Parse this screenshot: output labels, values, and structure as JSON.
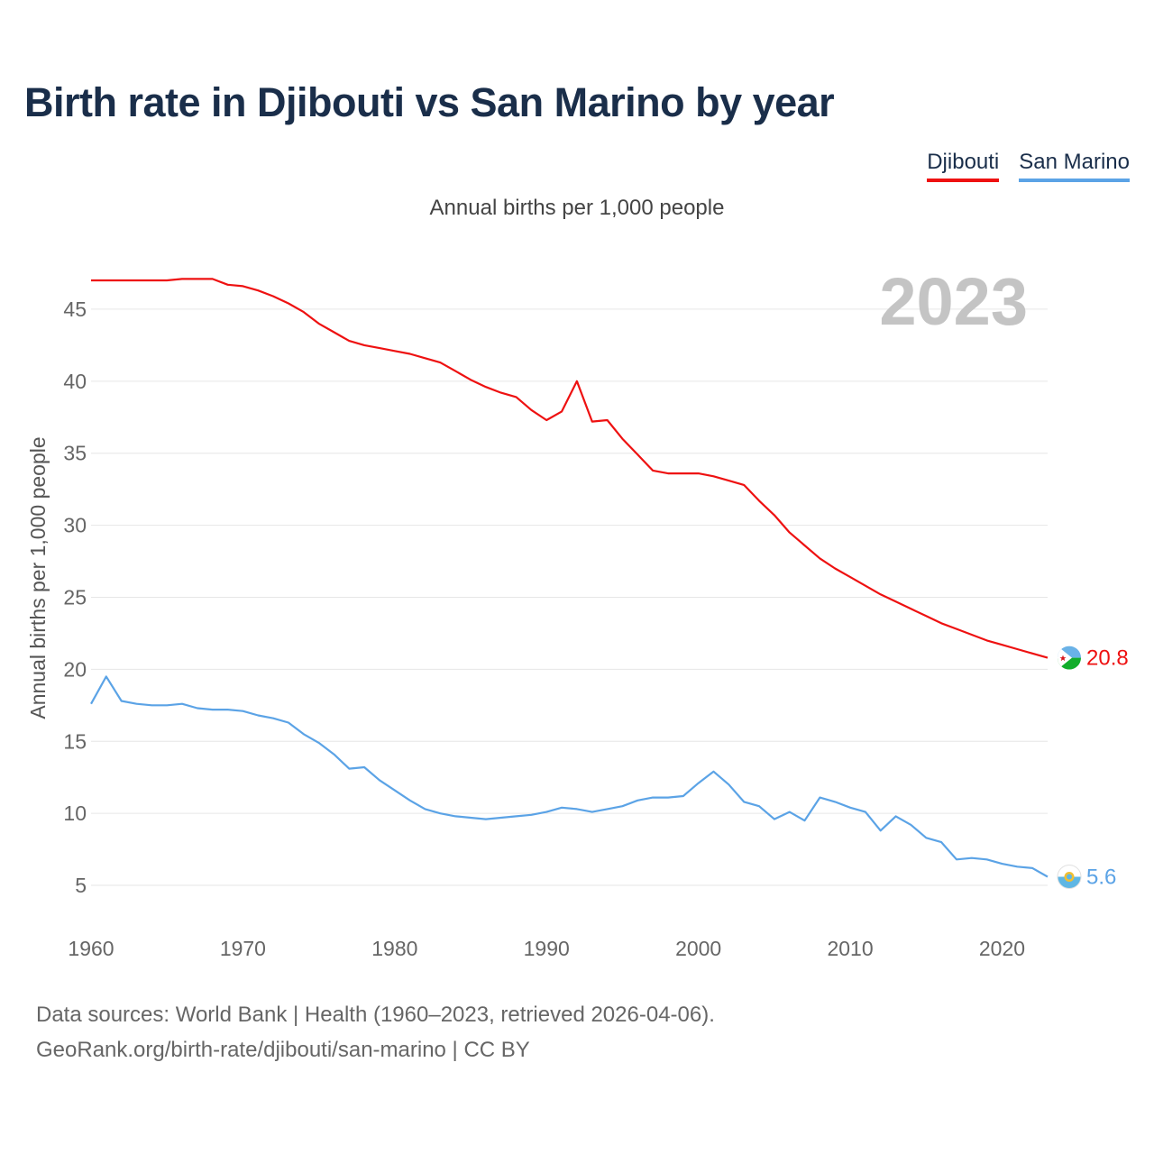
{
  "colors": {
    "djibouti": "#ee1111",
    "san_marino": "#5ba3e6",
    "grid": "#e6e6e6",
    "year_watermark": "#c4c4c4"
  },
  "chart_data": {
    "type": "line",
    "title": "Birth rate in Djibouti vs San Marino by year",
    "subtitle": "Annual births per 1,000 people",
    "ylabel": "Annual births per 1,000 people",
    "xlabel": "",
    "year_label": "2023",
    "xlim": [
      1960,
      2023
    ],
    "ylim": [
      2.5,
      48
    ],
    "x_ticks": [
      1960,
      1970,
      1980,
      1990,
      2000,
      2010,
      2020
    ],
    "y_ticks": [
      5,
      10,
      15,
      20,
      25,
      30,
      35,
      40,
      45
    ],
    "x": [
      1960,
      1961,
      1962,
      1963,
      1964,
      1965,
      1966,
      1967,
      1968,
      1969,
      1970,
      1971,
      1972,
      1973,
      1974,
      1975,
      1976,
      1977,
      1978,
      1979,
      1980,
      1981,
      1982,
      1983,
      1984,
      1985,
      1986,
      1987,
      1988,
      1989,
      1990,
      1991,
      1992,
      1993,
      1994,
      1995,
      1996,
      1997,
      1998,
      1999,
      2000,
      2001,
      2002,
      2003,
      2004,
      2005,
      2006,
      2007,
      2008,
      2009,
      2010,
      2011,
      2012,
      2013,
      2014,
      2015,
      2016,
      2017,
      2018,
      2019,
      2020,
      2021,
      2022,
      2023
    ],
    "series": [
      {
        "name": "Djibouti",
        "end_label": "20.8",
        "values": [
          47.0,
          47.0,
          47.0,
          47.0,
          47.0,
          47.0,
          47.1,
          47.1,
          47.1,
          46.7,
          46.6,
          46.3,
          45.9,
          45.4,
          44.8,
          44.0,
          43.4,
          42.8,
          42.5,
          42.3,
          42.1,
          41.9,
          41.6,
          41.3,
          40.7,
          40.1,
          39.6,
          39.2,
          38.9,
          38.0,
          37.3,
          37.9,
          40.0,
          37.2,
          37.3,
          36.0,
          34.9,
          33.8,
          33.6,
          33.6,
          33.6,
          33.4,
          33.1,
          32.8,
          31.7,
          30.7,
          29.5,
          28.6,
          27.7,
          27.0,
          26.4,
          25.8,
          25.2,
          24.7,
          24.2,
          23.7,
          23.2,
          22.8,
          22.4,
          22.0,
          21.7,
          21.4,
          21.1,
          20.8
        ]
      },
      {
        "name": "San Marino",
        "end_label": "5.6",
        "values": [
          17.6,
          19.5,
          17.8,
          17.6,
          17.5,
          17.5,
          17.6,
          17.3,
          17.2,
          17.2,
          17.1,
          16.8,
          16.6,
          16.3,
          15.5,
          14.9,
          14.1,
          13.1,
          13.2,
          12.3,
          11.6,
          10.9,
          10.3,
          10.0,
          9.8,
          9.7,
          9.6,
          9.7,
          9.8,
          9.9,
          10.1,
          10.4,
          10.3,
          10.1,
          10.3,
          10.5,
          10.9,
          11.1,
          11.1,
          11.2,
          12.1,
          12.9,
          12.0,
          10.8,
          10.5,
          9.6,
          10.1,
          9.5,
          11.1,
          10.8,
          10.4,
          10.1,
          8.8,
          9.8,
          9.2,
          8.3,
          8.0,
          6.8,
          6.9,
          6.8,
          6.5,
          6.3,
          6.2,
          5.6
        ]
      }
    ]
  },
  "footer": {
    "line1": "Data sources: World Bank | Health (1960–2023, retrieved 2026-04-06).",
    "line2": "GeoRank.org/birth-rate/djibouti/san-marino | CC BY"
  }
}
